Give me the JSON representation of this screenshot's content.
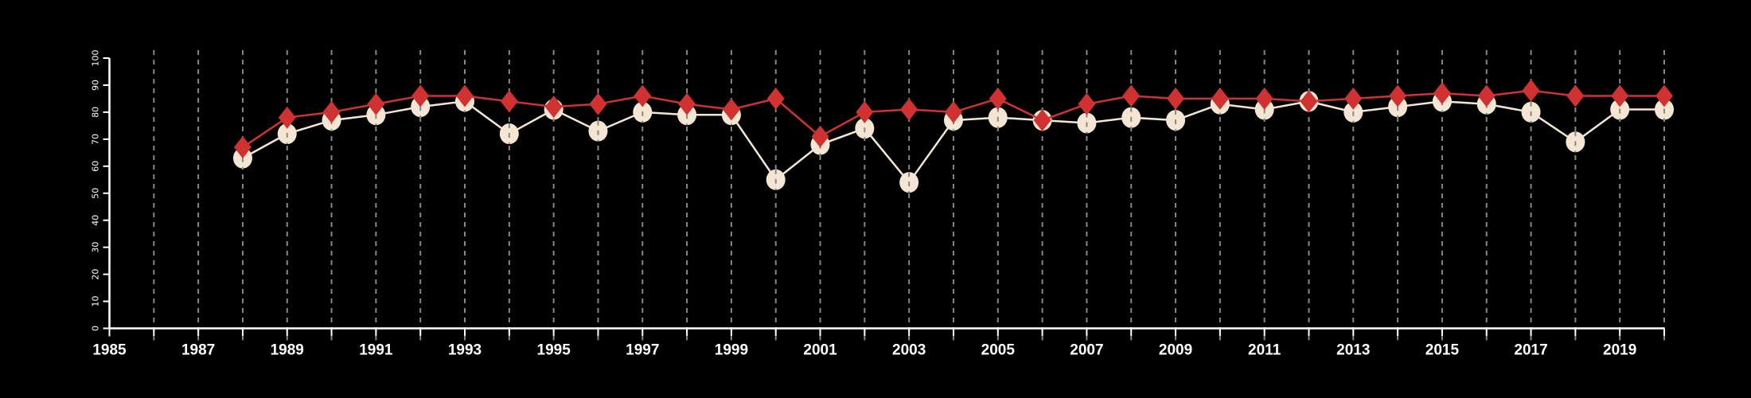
{
  "chart_data": {
    "type": "line",
    "title": "",
    "xlabel": "",
    "ylabel": "",
    "xlim": [
      1985,
      2020
    ],
    "ylim": [
      0,
      100
    ],
    "yticks": [
      0,
      10,
      20,
      30,
      40,
      50,
      60,
      70,
      80,
      90,
      100
    ],
    "xtick_labels": [
      1985,
      1987,
      1989,
      1991,
      1993,
      1995,
      1997,
      1999,
      2001,
      2003,
      2005,
      2007,
      2009,
      2011,
      2013,
      2015,
      2017,
      2019
    ],
    "grid": "vertical dashed at each year",
    "x": [
      1988,
      1989,
      1990,
      1991,
      1992,
      1993,
      1994,
      1995,
      1996,
      1997,
      1998,
      1999,
      2000,
      2001,
      2002,
      2003,
      2004,
      2005,
      2006,
      2007,
      2008,
      2009,
      2010,
      2011,
      2012,
      2013,
      2014,
      2015,
      2016,
      2017,
      2018,
      2019,
      2020
    ],
    "series": [
      {
        "name": "circles",
        "color": "#f5e6d3",
        "marker": "circle",
        "values": [
          63,
          72,
          77,
          79,
          82,
          84,
          72,
          81,
          73,
          80,
          79,
          79,
          55,
          68,
          74,
          54,
          77,
          78,
          77,
          76,
          78,
          77,
          83,
          81,
          84,
          80,
          82,
          84,
          83,
          80,
          69,
          81,
          81
        ]
      },
      {
        "name": "diamonds",
        "color": "#d03232",
        "marker": "diamond",
        "values": [
          67,
          78,
          80,
          83,
          86,
          86,
          84,
          82,
          83,
          86,
          83,
          81,
          85,
          71,
          80,
          81,
          80,
          85,
          77,
          83,
          86,
          85,
          85,
          85,
          84,
          85,
          86,
          87,
          86,
          88,
          86,
          86,
          86
        ]
      }
    ]
  }
}
